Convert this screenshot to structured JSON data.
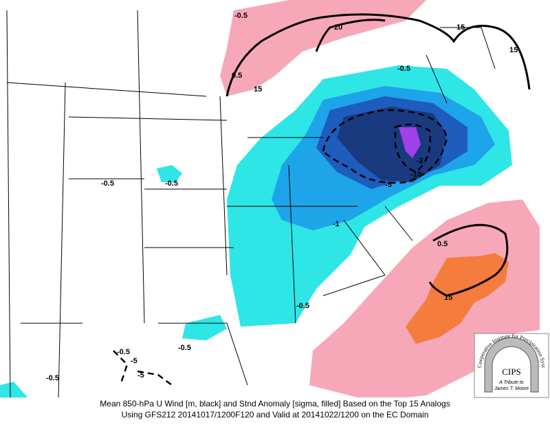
{
  "map": {
    "contour_labels": [
      "-0.5",
      "20",
      "15",
      "15",
      "0.5",
      "15",
      "-0.5",
      "-0.5",
      "-0.5",
      "-1",
      "-2",
      "-5",
      "-10",
      "0.5",
      "15",
      "-0.5",
      "-0.5",
      "-0.5",
      "-5",
      "-5",
      "-0.5"
    ]
  },
  "caption": [
    "Mean 850-hPa U Wind [m, black] and Stnd Anomaly [sigma, filled] Based on the Top 15 Analogs",
    "Using GFS212 20141017/1200F120 and Valid at 20141022/1200 on the EC Domain"
  ],
  "logo": {
    "arc_text": "Cooperative Institute for Precipitation Systems",
    "name": "CIPS",
    "tribute": [
      "A Tribute to",
      "James T. Moore"
    ]
  }
}
